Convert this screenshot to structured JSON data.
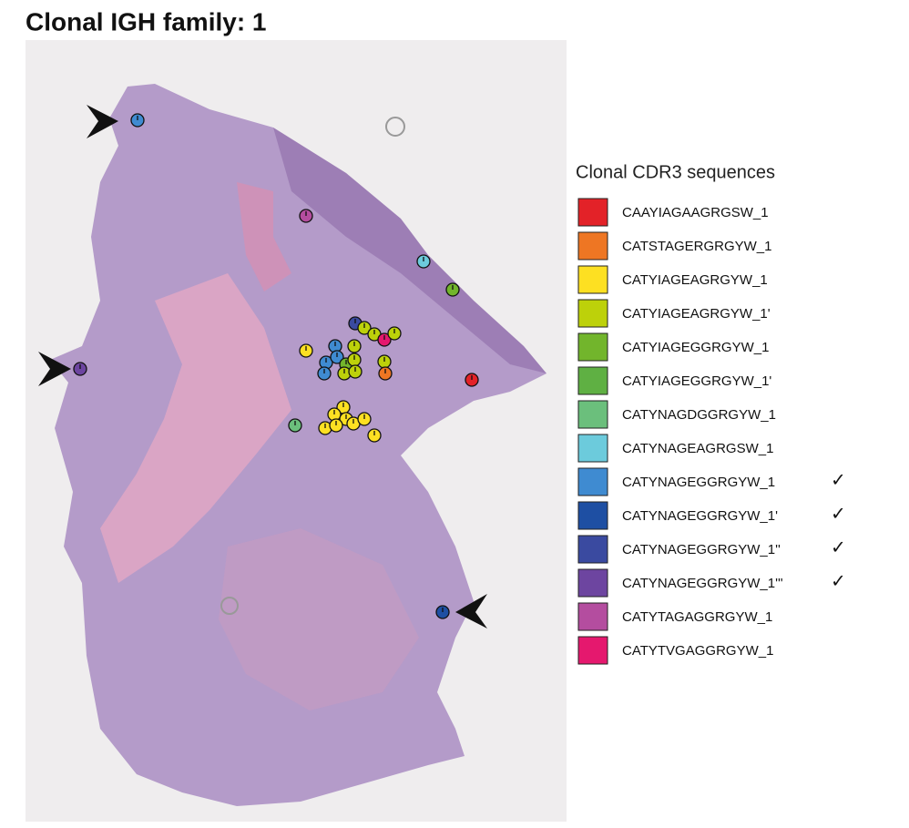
{
  "title": "Clonal IGH family: 1",
  "legend": {
    "title": "Clonal CDR3 sequences",
    "items": [
      {
        "name": "CAAYIAGAAGRGSW_1",
        "color": "#e32228"
      },
      {
        "name": "CATSTAGERGRGYW_1",
        "color": "#ee7623"
      },
      {
        "name": "CATYIAGEAGRGYW_1",
        "color": "#fde022"
      },
      {
        "name": "CATYIAGEAGRGYW_1'",
        "color": "#bdd10a"
      },
      {
        "name": "CATYIAGEGGRGYW_1",
        "color": "#72b52c"
      },
      {
        "name": "CATYIAGEGGRGYW_1'",
        "color": "#5fb043"
      },
      {
        "name": "CATYNAGDGGRGYW_1",
        "color": "#6bbf7c"
      },
      {
        "name": "CATYNAGEAGRGSW_1",
        "color": "#6ccbdc"
      },
      {
        "name": "CATYNAGEGGRGYW_1",
        "color": "#3f8bd1",
        "mark": "✓"
      },
      {
        "name": "CATYNAGEGGRGYW_1'",
        "color": "#1e4fa3",
        "mark": "✓"
      },
      {
        "name": "CATYNAGEGGRGYW_1''",
        "color": "#3a4aa0",
        "mark": "✓"
      },
      {
        "name": "CATYNAGEGGRGYW_1'''",
        "color": "#6d45a0",
        "mark": "✓"
      },
      {
        "name": "CATYTAGAGGRGYW_1",
        "color": "#b44d9f"
      },
      {
        "name": "CATYTVGAGGRGYW_1",
        "color": "#e5186e"
      }
    ]
  }
}
